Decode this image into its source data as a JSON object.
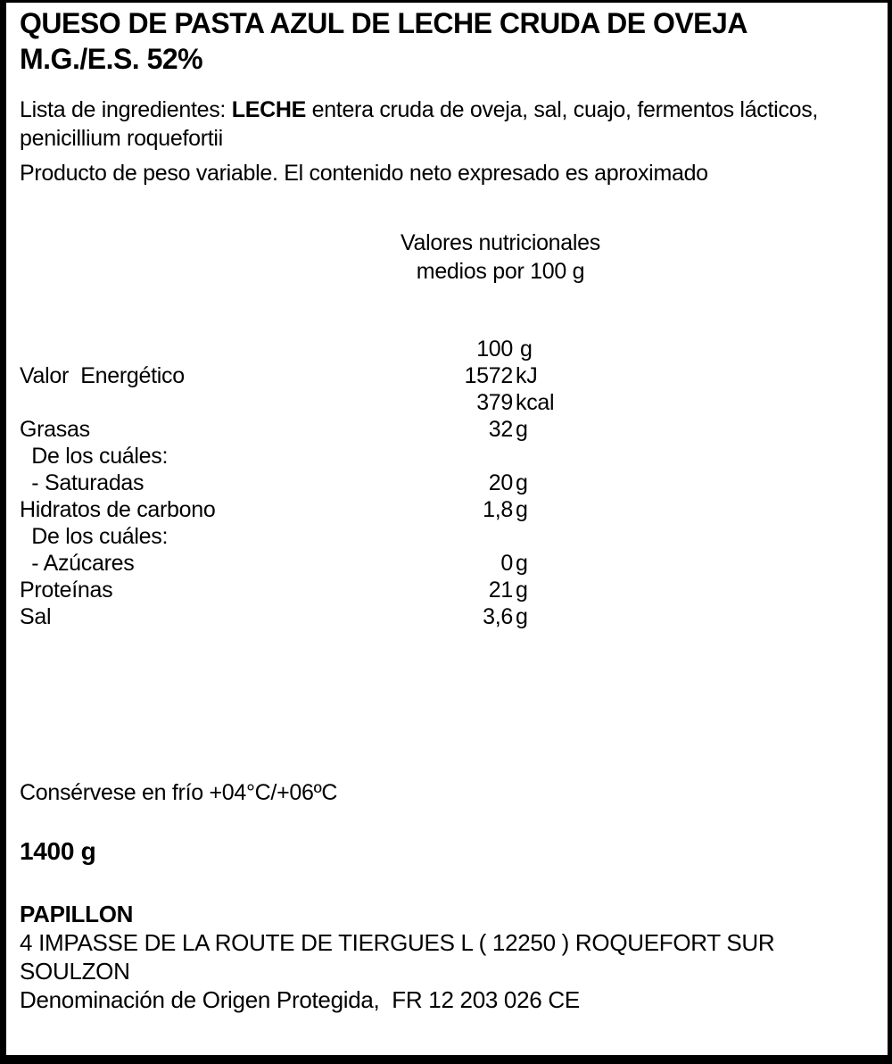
{
  "colors": {
    "text": "#000000",
    "background": "#ffffff",
    "border": "#000000"
  },
  "label": {
    "title_line1": "QUESO DE PASTA AZUL DE LECHE CRUDA DE OVEJA",
    "title_line2": "M.G./E.S. 52%",
    "ingredients": {
      "prefix": "Lista de ingredientes: ",
      "allergen": "LECHE",
      "rest": " entera cruda de oveja, sal, cuajo, fermentos lácticos, penicillium roquefortii"
    },
    "weight_note": "Producto de peso variable. El contenido neto expresado es aproximado",
    "nutrition": {
      "header_line1": "Valores nutricionales",
      "header_line2": "medios por 100 g",
      "rows": [
        {
          "label": "",
          "num": "100",
          "unit": "g"
        },
        {
          "label": "Valor  Energético",
          "num": "1572",
          "unit": "kJ"
        },
        {
          "label": "",
          "num": "379",
          "unit": "kcal"
        },
        {
          "label": "Grasas",
          "num": "32",
          "unit": "g"
        },
        {
          "label": "  De los cuáles:",
          "num": "",
          "unit": ""
        },
        {
          "label": "  - Saturadas",
          "num": "20",
          "unit": "g"
        },
        {
          "label": "Hidratos de carbono",
          "num": "1,8",
          "unit": "g"
        },
        {
          "label": "  De los cuáles:",
          "num": "",
          "unit": ""
        },
        {
          "label": "  - Azúcares",
          "num": "0",
          "unit": "g"
        },
        {
          "label": "Proteínas",
          "num": "21",
          "unit": "g"
        },
        {
          "label": "Sal",
          "num": "3,6",
          "unit": "g"
        }
      ]
    },
    "storage": "Consérvese en frío +04°C/+06ºC",
    "net_weight": "1400 g",
    "producer": {
      "name": "PAPILLON",
      "address_line1": "4 IMPASSE DE LA ROUTE DE TIERGUES L ( 12250 ) ROQUEFORT SUR",
      "address_line2": "SOULZON",
      "designation": "Denominación de Origen Protegida,  FR 12 203 026 CE"
    }
  }
}
